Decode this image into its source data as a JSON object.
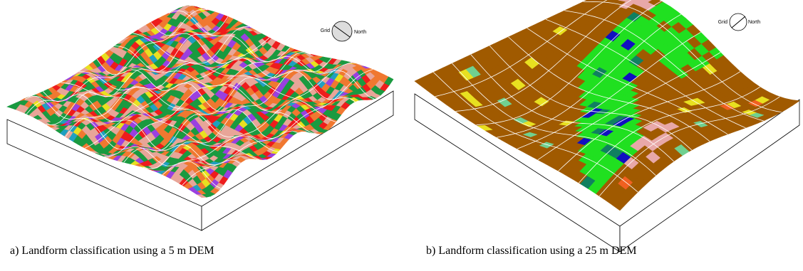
{
  "panels": [
    {
      "compass": {
        "left": "Grid",
        "right": "North"
      },
      "caption": "a) Landform classification using a 5 m DEM"
    },
    {
      "compass": {
        "left": "Grid",
        "right": "North"
      },
      "caption": "b) Landform classification using a 25 m DEM"
    }
  ]
}
